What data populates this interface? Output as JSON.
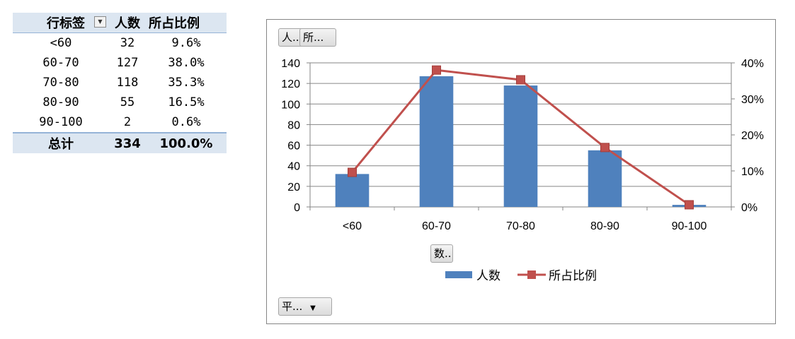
{
  "pivot": {
    "headers": [
      "行标签",
      "人数",
      "所占比例"
    ],
    "rows": [
      {
        "label": "<60",
        "count": "32",
        "pct": "9.6%"
      },
      {
        "label": "60-70",
        "count": "127",
        "pct": "38.0%"
      },
      {
        "label": "70-80",
        "count": "118",
        "pct": "35.3%"
      },
      {
        "label": "80-90",
        "count": "55",
        "pct": "16.5%"
      },
      {
        "label": "90-100",
        "count": "2",
        "pct": "0.6%"
      }
    ],
    "total": {
      "label": "总计",
      "count": "334",
      "pct": "100.0%"
    },
    "header_fill": "#dce6f1"
  },
  "chart_buttons": {
    "value_field_1": "人..",
    "value_field_2": "所...",
    "axis_field": "数..",
    "report_filter": "平...",
    "report_filter_arrow": "▼"
  },
  "chart_data": {
    "type": "bar",
    "categories": [
      "<60",
      "60-70",
      "70-80",
      "80-90",
      "90-100"
    ],
    "series": [
      {
        "name": "人数",
        "kind": "bar",
        "axis": "left",
        "color": "#4f81bd",
        "values": [
          32,
          127,
          118,
          55,
          2
        ]
      },
      {
        "name": "所占比例",
        "kind": "line",
        "axis": "right",
        "color": "#c0504d",
        "values": [
          0.096,
          0.38,
          0.353,
          0.165,
          0.006
        ]
      }
    ],
    "y_left": {
      "min": 0,
      "max": 140,
      "step": 20,
      "ticks": [
        "0",
        "20",
        "40",
        "60",
        "80",
        "100",
        "120",
        "140"
      ]
    },
    "y_right": {
      "min": 0,
      "max": 0.4,
      "step": 0.1,
      "ticks": [
        "0%",
        "10%",
        "20%",
        "30%",
        "40%"
      ]
    },
    "grid": true,
    "legend_position": "bottom"
  }
}
